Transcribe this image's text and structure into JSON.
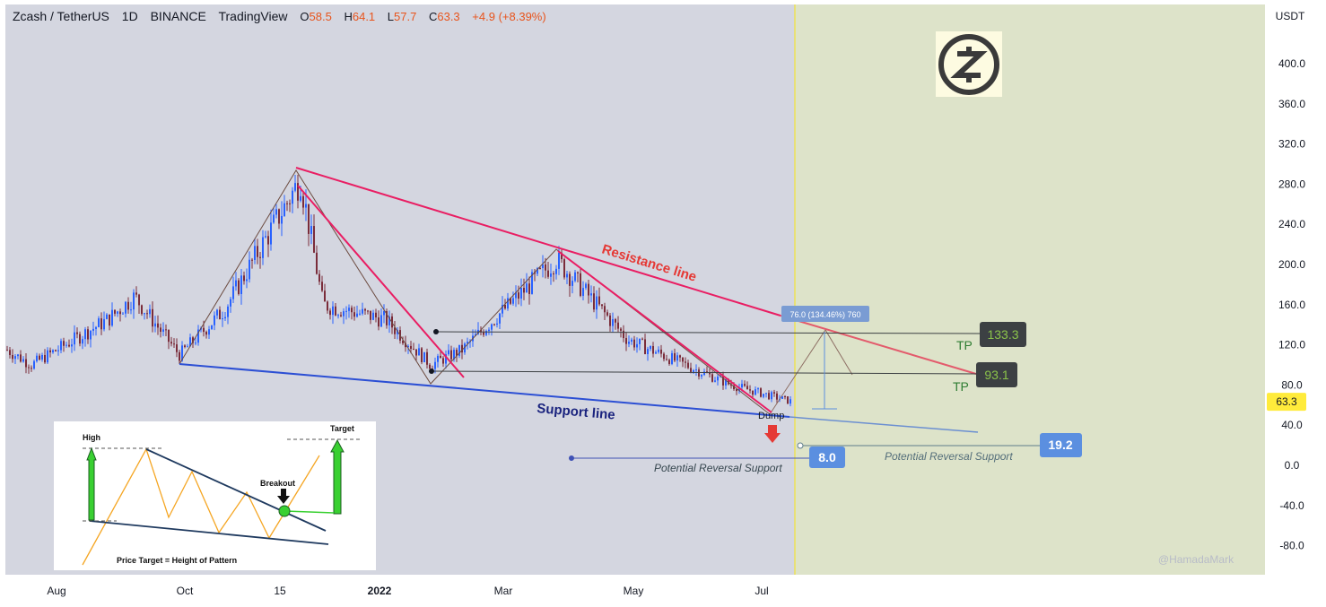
{
  "header": {
    "symbol": "Zcash / TetherUS",
    "interval": "1D",
    "exchange": "BINANCE",
    "source": "TradingView",
    "open": "58.5",
    "high": "64.1",
    "low": "57.7",
    "close": "63.3",
    "change": "+4.9 (+8.39%)"
  },
  "price_axis": {
    "currency": "USDT",
    "last_price": "63.3"
  },
  "colors": {
    "background": "#d4d6e0",
    "forecast_zone": "#dde3c9",
    "candle_up": "#2962ff",
    "candle_down": "#7a2c3a",
    "resistance": "#e91e63",
    "support": "#2c4fd4",
    "label_dark": "#3c4043",
    "label_blue": "#5b8fe0",
    "last_price": "#ffeb3b"
  },
  "chart_data": {
    "type": "candlestick",
    "y_ticks": [
      400,
      360,
      320,
      280,
      240,
      200,
      160,
      120,
      80,
      40,
      0,
      -40,
      -80
    ],
    "ylim": [
      -105,
      430
    ],
    "x_tick_labels": [
      "Aug",
      "Oct",
      "15",
      "2022",
      "Mar",
      "May",
      "Jul"
    ],
    "close_path": [
      [
        "Jul 2021",
        115
      ],
      [
        "Aug 2021",
        100
      ],
      [
        "late Aug 2021",
        145
      ],
      [
        "Sep 2021",
        168
      ],
      [
        "Oct 2021",
        110
      ],
      [
        "late Oct 2021",
        155
      ],
      [
        "Nov 2021",
        285
      ],
      [
        "Dec 2021",
        160
      ],
      [
        "Jan 2022",
        145
      ],
      [
        "Feb 2022",
        100
      ],
      [
        "late Feb 2022",
        115
      ],
      [
        "early Apr 2022",
        205
      ],
      [
        "May 2022",
        125
      ],
      [
        "Jun 2022",
        80
      ],
      [
        "Jul 2022",
        63.3
      ]
    ],
    "annotations": {
      "resistance_label": "Resistance line",
      "support_label": "Support line",
      "dump_label": "Dump",
      "reversal_label": "Potential Reversal Support",
      "tp_label": "TP",
      "tp1": "133.3",
      "tp2": "93.1",
      "support1": "8.0",
      "support2": "19.2",
      "measure": "76.0 (134.46%) 760",
      "watermark": "@HamadaMark"
    }
  },
  "inset": {
    "high": "High",
    "target": "Target",
    "breakout": "Breakout",
    "caption": "Price Target = Height of Pattern"
  }
}
